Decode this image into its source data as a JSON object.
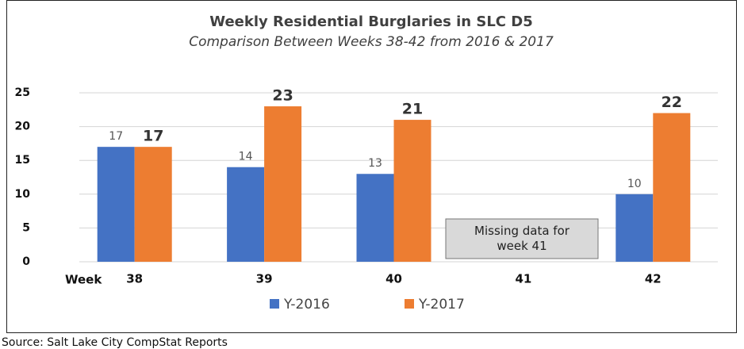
{
  "chart_data": {
    "type": "bar",
    "title": "Weekly Residential Burglaries in SLC D5",
    "subtitle": "Comparison Between Weeks 38-42 from 2016 & 2017",
    "x_label": "Week",
    "categories": [
      "38",
      "39",
      "40",
      "41",
      "42"
    ],
    "series": [
      {
        "name": "Y-2016",
        "color": "#4472c4",
        "values": [
          17,
          14,
          13,
          null,
          10
        ]
      },
      {
        "name": "Y-2017",
        "color": "#ed7d31",
        "values": [
          17,
          23,
          21,
          null,
          22
        ]
      }
    ],
    "ylim": [
      0,
      25
    ],
    "yticks": [
      0,
      5,
      10,
      15,
      20,
      25
    ],
    "grid": true,
    "legend": "bottom",
    "annotation": "Missing data for week 41",
    "source": "Source: Salt Lake City CompStat Reports"
  }
}
